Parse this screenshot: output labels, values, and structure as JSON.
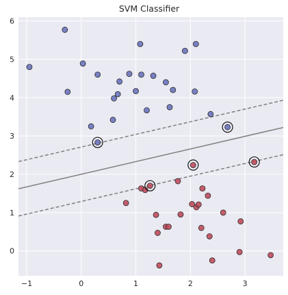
{
  "chart_data": {
    "type": "scatter",
    "title": "SVM Classifier",
    "xlabel": "",
    "ylabel": "",
    "xlim": [
      -1.15,
      3.7
    ],
    "ylim": [
      -0.65,
      6.1
    ],
    "xticks": [
      -1,
      0,
      1,
      2,
      3
    ],
    "yticks": [
      0,
      1,
      2,
      3,
      4,
      5,
      6
    ],
    "grid": true,
    "background": "#eaeaf2",
    "colors": {
      "class_0": "#6b74be",
      "class_1": "#c04d5c",
      "edge": "#2b2b2b",
      "boundary": "#7f7f7f",
      "support_ring": "#000000"
    },
    "series": [
      {
        "values": [
          [
            -0.95,
            4.8
          ],
          [
            -0.3,
            5.77
          ],
          [
            -0.25,
            4.15
          ],
          [
            0.03,
            4.89
          ],
          [
            0.3,
            4.6
          ],
          [
            0.18,
            3.25
          ],
          [
            0.3,
            2.83
          ],
          [
            0.58,
            3.42
          ],
          [
            0.6,
            3.98
          ],
          [
            0.67,
            4.09
          ],
          [
            0.7,
            4.42
          ],
          [
            0.88,
            4.62
          ],
          [
            1.0,
            4.17
          ],
          [
            1.08,
            5.4
          ],
          [
            1.1,
            4.6
          ],
          [
            1.2,
            3.67
          ],
          [
            1.32,
            4.57
          ],
          [
            1.55,
            4.4
          ],
          [
            1.62,
            3.75
          ],
          [
            1.68,
            4.2
          ],
          [
            1.9,
            5.22
          ],
          [
            2.1,
            5.4
          ],
          [
            2.08,
            4.16
          ],
          [
            2.37,
            3.57
          ],
          [
            2.68,
            3.23
          ]
        ]
      },
      {
        "values": [
          [
            0.82,
            1.25
          ],
          [
            1.1,
            1.63
          ],
          [
            1.17,
            1.59
          ],
          [
            1.26,
            1.7
          ],
          [
            1.37,
            0.94
          ],
          [
            1.4,
            0.47
          ],
          [
            1.43,
            -0.38
          ],
          [
            1.55,
            0.63
          ],
          [
            1.6,
            0.63
          ],
          [
            1.77,
            1.82
          ],
          [
            1.82,
            0.95
          ],
          [
            2.05,
            2.24
          ],
          [
            2.03,
            1.22
          ],
          [
            2.11,
            1.14
          ],
          [
            2.15,
            1.21
          ],
          [
            2.2,
            0.6
          ],
          [
            2.22,
            1.63
          ],
          [
            2.32,
            1.44
          ],
          [
            2.35,
            0.38
          ],
          [
            2.4,
            -0.25
          ],
          [
            2.6,
            1.0
          ],
          [
            2.92,
            0.77
          ],
          [
            2.9,
            -0.03
          ],
          [
            3.17,
            2.32
          ],
          [
            3.47,
            -0.11
          ]
        ]
      }
    ],
    "support_vectors": [
      [
        0.3,
        2.83
      ],
      [
        2.68,
        3.23
      ],
      [
        2.05,
        2.24
      ],
      [
        1.26,
        1.7
      ],
      [
        3.17,
        2.32
      ]
    ],
    "decision_boundary": {
      "slope": 0.33,
      "intercept": 2.0,
      "margin_offset": 0.71
    }
  }
}
